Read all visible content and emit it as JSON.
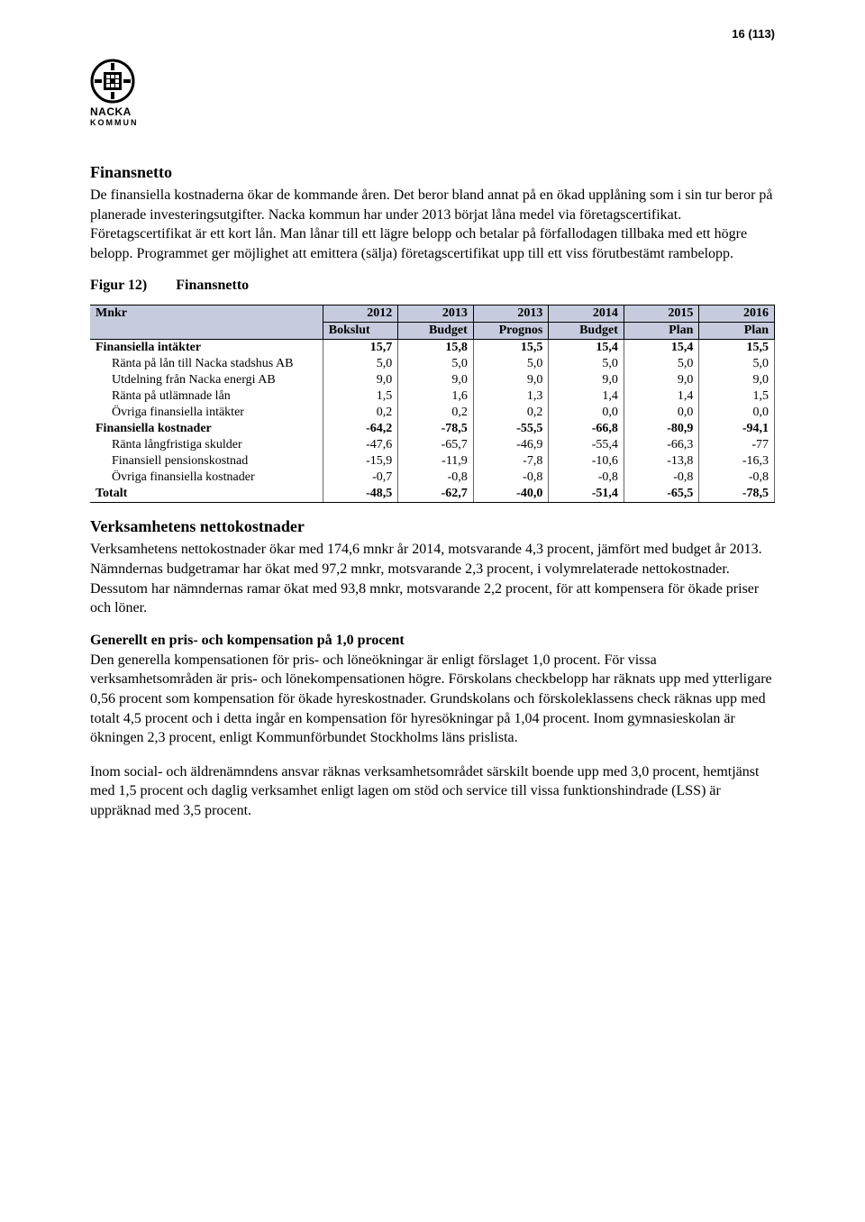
{
  "page_number": "16 (113)",
  "logo": {
    "line1": "NACKA",
    "line2": "KOMMUN"
  },
  "section1": {
    "heading": "Finansnetto",
    "body": "De finansiella kostnaderna ökar de kommande åren. Det beror bland annat på en ökad upplåning som i sin tur beror på planerade investeringsutgifter. Nacka kommun har under 2013 börjat låna medel via företagscertifikat. Företagscertifikat är ett kort lån. Man lånar till ett lägre belopp och betalar på förfallodagen tillbaka med ett högre belopp. Programmet ger möjlighet att emittera (sälja) företagscertifikat upp till ett viss förutbestämt rambelopp."
  },
  "figure": {
    "number": "Figur 12)",
    "title": "Finansnetto"
  },
  "table": {
    "header_bg": "#c6ccde",
    "col_label": "Mnkr",
    "cols": [
      {
        "year": "2012",
        "sub": "Bokslut"
      },
      {
        "year": "2013",
        "sub": "Budget"
      },
      {
        "year": "2013",
        "sub": "Prognos"
      },
      {
        "year": "2014",
        "sub": "Budget"
      },
      {
        "year": "2015",
        "sub": "Plan"
      },
      {
        "year": "2016",
        "sub": "Plan"
      }
    ],
    "rows": [
      {
        "label": "Finansiella intäkter",
        "bold": true,
        "indent": false,
        "v": [
          "15,7",
          "15,8",
          "15,5",
          "15,4",
          "15,4",
          "15,5"
        ]
      },
      {
        "label": "Ränta på lån till Nacka stadshus AB",
        "bold": false,
        "indent": true,
        "v": [
          "5,0",
          "5,0",
          "5,0",
          "5,0",
          "5,0",
          "5,0"
        ]
      },
      {
        "label": "Utdelning från Nacka energi AB",
        "bold": false,
        "indent": true,
        "v": [
          "9,0",
          "9,0",
          "9,0",
          "9,0",
          "9,0",
          "9,0"
        ]
      },
      {
        "label": "Ränta på utlämnade lån",
        "bold": false,
        "indent": true,
        "v": [
          "1,5",
          "1,6",
          "1,3",
          "1,4",
          "1,4",
          "1,5"
        ]
      },
      {
        "label": "Övriga finansiella intäkter",
        "bold": false,
        "indent": true,
        "v": [
          "0,2",
          "0,2",
          "0,2",
          "0,0",
          "0,0",
          "0,0"
        ]
      },
      {
        "label": "Finansiella kostnader",
        "bold": true,
        "indent": false,
        "v": [
          "-64,2",
          "-78,5",
          "-55,5",
          "-66,8",
          "-80,9",
          "-94,1"
        ]
      },
      {
        "label": "Ränta långfristiga skulder",
        "bold": false,
        "indent": true,
        "v": [
          "-47,6",
          "-65,7",
          "-46,9",
          "-55,4",
          "-66,3",
          "-77"
        ]
      },
      {
        "label": "Finansiell pensionskostnad",
        "bold": false,
        "indent": true,
        "v": [
          "-15,9",
          "-11,9",
          "-7,8",
          "-10,6",
          "-13,8",
          "-16,3"
        ]
      },
      {
        "label": "Övriga finansiella kostnader",
        "bold": false,
        "indent": true,
        "v": [
          "-0,7",
          "-0,8",
          "-0,8",
          "-0,8",
          "-0,8",
          "-0,8"
        ]
      },
      {
        "label": "Totalt",
        "bold": true,
        "indent": false,
        "v": [
          "-48,5",
          "-62,7",
          "-40,0",
          "-51,4",
          "-65,5",
          "-78,5"
        ]
      }
    ]
  },
  "section2": {
    "heading": "Verksamhetens nettokostnader",
    "body": "Verksamhetens nettokostnader ökar med 174,6 mnkr år 2014, motsvarande 4,3 procent, jämfört med budget år 2013. Nämndernas budgetramar har ökat med 97,2 mnkr, motsvarande 2,3 procent, i volymrelaterade nettokostnader. Dessutom har nämndernas ramar ökat med 93,8 mnkr, motsvarande 2,2 procent, för att kompensera för ökade priser och löner."
  },
  "section3": {
    "heading": "Generellt en pris- och kompensation på 1,0 procent",
    "body": "Den generella kompensationen för pris- och löneökningar är enligt förslaget 1,0 procent. För vissa verksamhetsområden är pris- och lönekompensationen högre. Förskolans checkbelopp har räknats upp med ytterligare 0,56 procent som kompensation för ökade hyreskostnader. Grundskolans och förskoleklassens check räknas upp med totalt 4,5 procent och i detta ingår en kompensation för hyresökningar på 1,04 procent. Inom gymnasieskolan är ökningen 2,3 procent, enligt Kommunförbundet Stockholms läns prislista."
  },
  "section4": {
    "body": "Inom social- och äldrenämndens ansvar räknas verksamhetsområdet särskilt boende upp med 3,0 procent, hemtjänst med 1,5 procent och daglig verksamhet enligt lagen om stöd och service till vissa funktionshindrade (LSS) är uppräknad med 3,5 procent."
  }
}
